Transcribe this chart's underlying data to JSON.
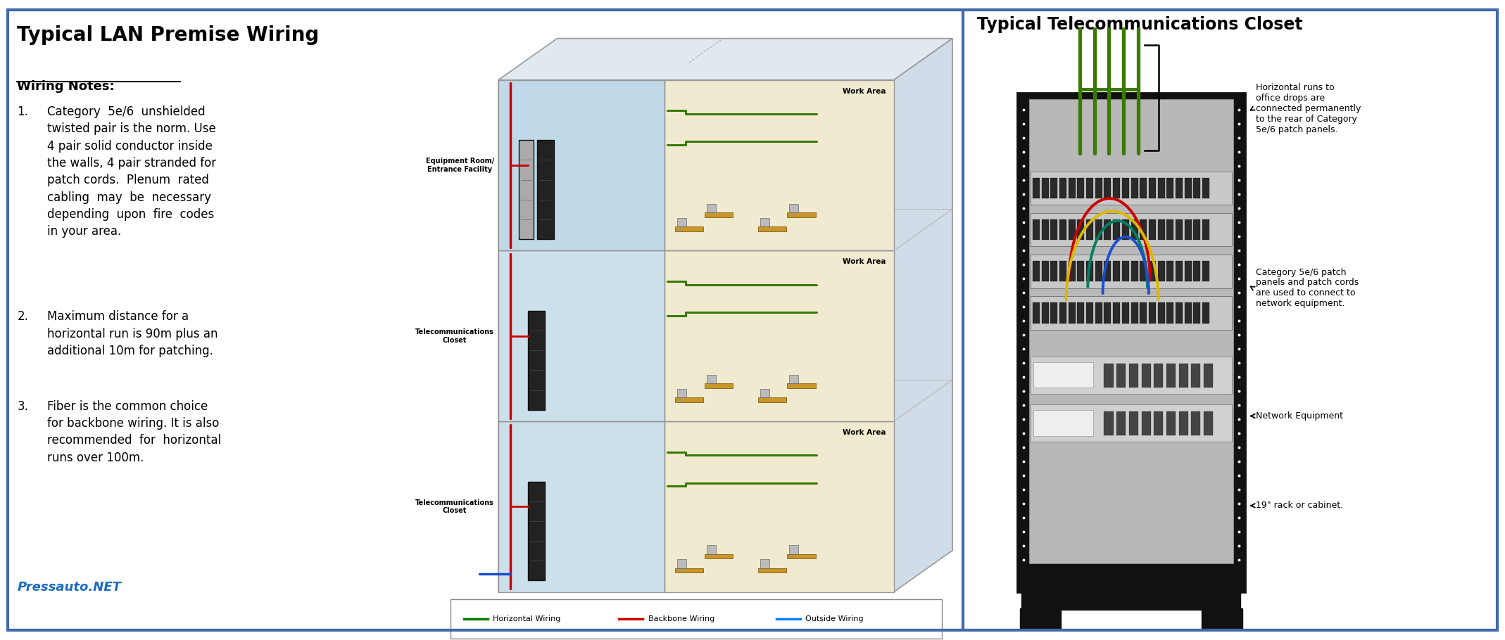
{
  "title_left": "Typical LAN Premise Wiring",
  "title_right": "Typical Telecommunications Closet",
  "bg_color": "#ffffff",
  "divider_color": "#4169aa",
  "wiring_notes_title": "Wiring Notes:",
  "note1_num": "1.",
  "note1": "Category  5e/6  unshielded\ntwisted pair is the norm. Use\n4 pair solid conductor inside\nthe walls, 4 pair stranded for\npatch cords.  Plenum  rated\ncabling  may  be  necessary\ndepending  upon  fire  codes\nin your area.",
  "note2_num": "2.",
  "note2": "Maximum distance for a\nhorizontal run is 90m plus an\nadditional 10m for patching.",
  "note3_num": "3.",
  "note3": "Fiber is the common choice\nfor backbone wiring. It is also\nrecommended  for  horizontal\nruns over 100m.",
  "watermark": "Pressauto.NET",
  "floor_labels": [
    "Telecommunications\nCloset",
    "Telecommunications\nCloset",
    "Equipment Room/\nEntrance Facility"
  ],
  "work_area_label": "Work Area",
  "legend_items": [
    {
      "label": "Horizontal Wiring",
      "color": "#008000"
    },
    {
      "label": "Backbone Wiring",
      "color": "#cc0000"
    },
    {
      "label": "Outside Wiring",
      "color": "#0080ff"
    }
  ],
  "right_annotations": [
    "Horizontal runs to\noffice drops are\nconnected permanently\nto the rear of Category\n5e/6 patch panels.",
    "Category 5e/6 patch\npanels and patch cords\nare used to connect to\nnetwork equipment.",
    "Network Equipment",
    "19\" rack or cabinet."
  ],
  "green_wire": "#3a7a00",
  "red_wire": "#cc0000",
  "yellow_wire": "#ddb800",
  "teal_wire": "#008060",
  "blue_wire": "#1a4fcc"
}
